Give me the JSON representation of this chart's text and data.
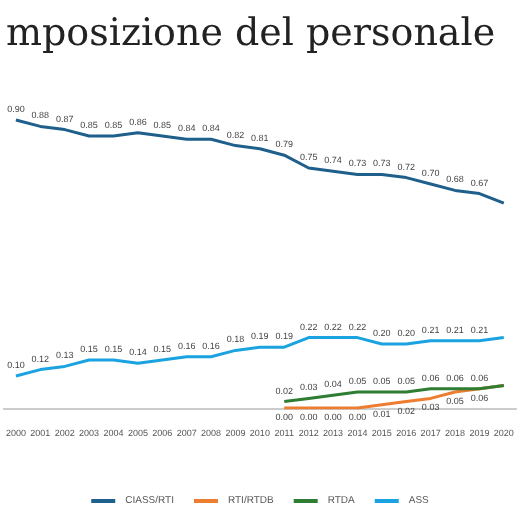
{
  "chart_data": {
    "type": "line",
    "title": "mposizione del personale",
    "categories": [
      "2000",
      "2001",
      "2002",
      "2003",
      "2004",
      "2005",
      "2006",
      "2007",
      "2008",
      "2009",
      "2010",
      "2011",
      "2012",
      "2013",
      "2014",
      "2015",
      "2016",
      "2017",
      "2018",
      "2019",
      "2020"
    ],
    "series": [
      {
        "name": "CIASS/RTI",
        "color": "#1f5f8b",
        "values": [
          0.9,
          0.88,
          0.87,
          0.85,
          0.85,
          0.86,
          0.85,
          0.84,
          0.84,
          0.82,
          0.81,
          0.79,
          0.75,
          0.74,
          0.73,
          0.73,
          0.72,
          0.7,
          0.68,
          0.67,
          0.64
        ],
        "value_labels": [
          "0.90",
          "0.88",
          "0.87",
          "0.85",
          "0.85",
          "0.86",
          "0.85",
          "0.84",
          "0.84",
          "0.82",
          "0.81",
          "0.79",
          "0.75",
          "0.74",
          "0.73",
          "0.73",
          "0.72",
          "0.70",
          "0.68",
          "0.67",
          null
        ]
      },
      {
        "name": "RTI/RTDB",
        "color": "#ed7d31",
        "values": [
          null,
          null,
          null,
          null,
          null,
          null,
          null,
          null,
          null,
          null,
          null,
          0.0,
          0.0,
          0.0,
          0.0,
          0.01,
          0.02,
          0.03,
          0.05,
          0.06,
          0.07
        ],
        "value_labels": [
          null,
          null,
          null,
          null,
          null,
          null,
          null,
          null,
          null,
          null,
          null,
          "0.00",
          "0.00",
          "0.00",
          "0.00",
          "0.01",
          "0.02",
          "0.03",
          "0.05",
          "0.06",
          null
        ]
      },
      {
        "name": "RTDA",
        "color": "#2e7d32",
        "values": [
          null,
          null,
          null,
          null,
          null,
          null,
          null,
          null,
          null,
          null,
          null,
          0.02,
          0.03,
          0.04,
          0.05,
          0.05,
          0.05,
          0.06,
          0.06,
          0.06,
          0.07
        ],
        "value_labels": [
          null,
          null,
          null,
          null,
          null,
          null,
          null,
          null,
          null,
          null,
          null,
          "0.02",
          "0.03",
          "0.04",
          "0.05",
          "0.05",
          "0.05",
          "0.06",
          "0.06",
          "0.06",
          null
        ]
      },
      {
        "name": "ASS",
        "color": "#1aa3e0",
        "values": [
          0.1,
          0.12,
          0.13,
          0.15,
          0.15,
          0.14,
          0.15,
          0.16,
          0.16,
          0.18,
          0.19,
          0.19,
          0.22,
          0.22,
          0.22,
          0.2,
          0.2,
          0.21,
          0.21,
          0.21,
          0.22
        ],
        "value_labels": [
          "0.10",
          "0.12",
          "0.13",
          "0.15",
          "0.15",
          "0.14",
          "0.15",
          "0.16",
          "0.16",
          "0.18",
          "0.19",
          "0.19",
          "0.22",
          "0.22",
          "0.22",
          "0.20",
          "0.20",
          "0.21",
          "0.21",
          "0.21",
          null
        ]
      }
    ],
    "tick_labels": "x",
    "legend": "bottom",
    "marker": "none",
    "line_style": "solid"
  }
}
